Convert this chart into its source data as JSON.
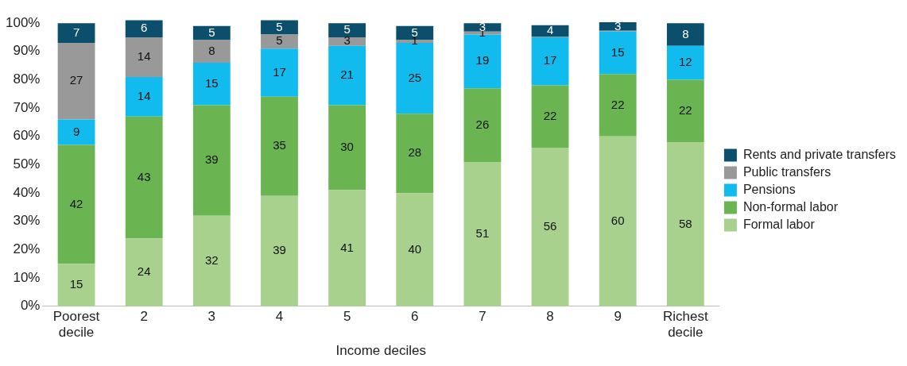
{
  "chart_data": {
    "type": "bar",
    "stacked": true,
    "xlabel": "Income deciles",
    "categories": [
      "Poorest decile",
      "2",
      "3",
      "4",
      "5",
      "6",
      "7",
      "8",
      "9",
      "Richest decile"
    ],
    "series": [
      {
        "name": "Formal labor",
        "color": "#a9d18e",
        "values": [
          15,
          24,
          32,
          39,
          41,
          40,
          51,
          56,
          60,
          58
        ]
      },
      {
        "name": "Non-formal labor",
        "color": "#6ab552",
        "values": [
          42,
          43,
          39,
          35,
          30,
          28,
          26,
          22,
          22,
          22
        ]
      },
      {
        "name": "Pensions",
        "color": "#12bbee",
        "values": [
          9,
          14,
          15,
          17,
          21,
          25,
          19,
          17,
          15,
          12
        ]
      },
      {
        "name": "Public transfers",
        "color": "#999999",
        "values": [
          27,
          14,
          8,
          5,
          3,
          1,
          1,
          0.3,
          0.3,
          null
        ],
        "value_labels": [
          "27",
          "14",
          "8",
          "5",
          "3",
          "1",
          "1",
          null,
          null,
          null
        ]
      },
      {
        "name": "Rents and private transfers",
        "color": "#0b4f6c",
        "values": [
          7,
          6,
          5,
          5,
          5,
          5,
          3,
          4,
          3,
          8
        ]
      }
    ],
    "data_labels": true,
    "ylim": [
      0,
      102
    ],
    "yticks": [
      {
        "value": 0,
        "label": "0%"
      },
      {
        "value": 10,
        "label": "10%"
      },
      {
        "value": 20,
        "label": "20%"
      },
      {
        "value": 30,
        "label": "30%"
      },
      {
        "value": 40,
        "label": "40%"
      },
      {
        "value": 50,
        "label": "50%"
      },
      {
        "value": 60,
        "label": "60%"
      },
      {
        "value": 70,
        "label": "70%"
      },
      {
        "value": 80,
        "label": "80%"
      },
      {
        "value": 90,
        "label": "90%"
      },
      {
        "value": 100,
        "label": "100%"
      }
    ],
    "grid": false,
    "legend": "right"
  }
}
